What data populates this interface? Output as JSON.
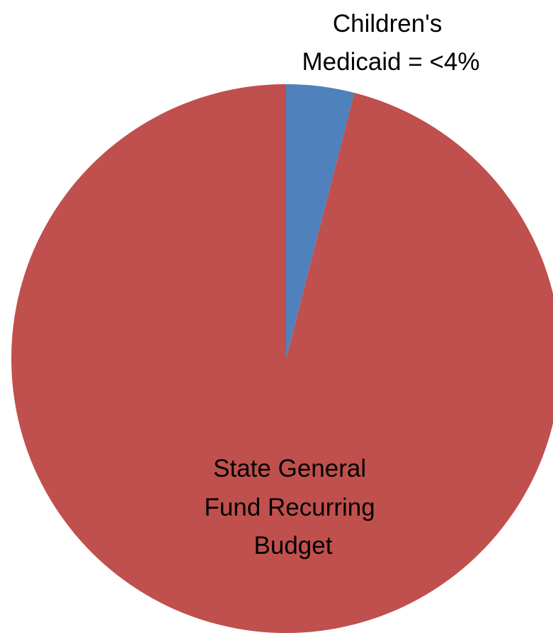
{
  "chart_data": {
    "type": "pie",
    "title": "",
    "slices": [
      {
        "label_lines": [
          "Children's",
          "Medicaid = <4%"
        ],
        "value": 4,
        "color": "#4F81BD"
      },
      {
        "label_lines": [
          "State General",
          "Fund Recurring",
          "Budget"
        ],
        "value": 96,
        "color": "#C0504D"
      }
    ],
    "start_angle_deg": 0,
    "direction": "clockwise"
  }
}
